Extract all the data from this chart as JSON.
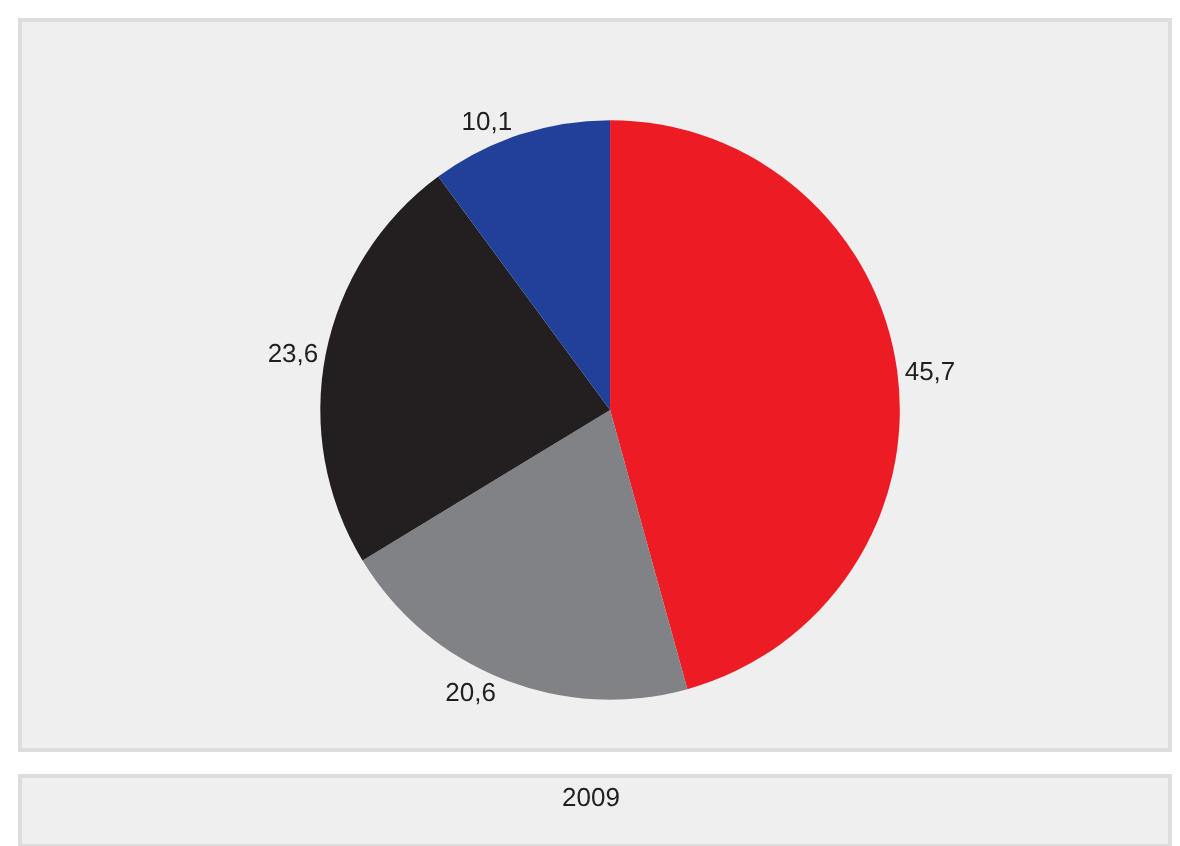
{
  "chart_data": {
    "type": "pie",
    "title": "2009",
    "categories": [
      null,
      null,
      null,
      null
    ],
    "values": [
      45.7,
      20.6,
      23.6,
      10.1
    ],
    "colors": [
      "#ed1c24",
      "#808285",
      "#231f20",
      "#21409a"
    ],
    "value_labels": [
      "45,7",
      "20,6",
      "23,6",
      "10,1"
    ],
    "legend": false
  }
}
